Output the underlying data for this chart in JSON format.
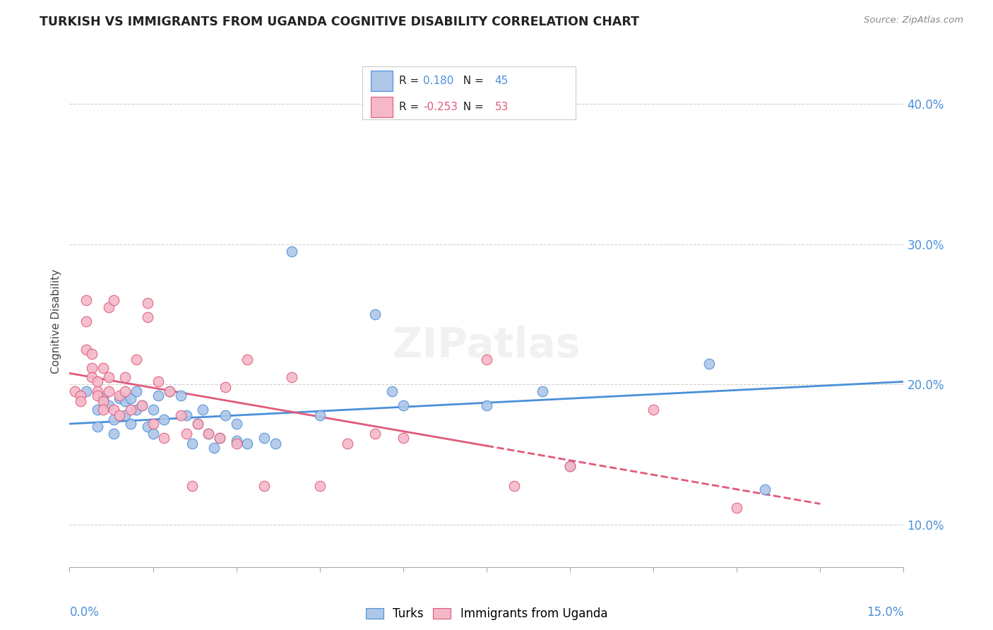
{
  "title": "TURKISH VS IMMIGRANTS FROM UGANDA COGNITIVE DISABILITY CORRELATION CHART",
  "source": "Source: ZipAtlas.com",
  "ylabel": "Cognitive Disability",
  "xmin": 0.0,
  "xmax": 15.0,
  "ymin": 7.0,
  "ymax": 42.0,
  "yticks": [
    10.0,
    20.0,
    30.0,
    40.0
  ],
  "blue_R": 0.18,
  "blue_N": 45,
  "pink_R": -0.253,
  "pink_N": 53,
  "blue_color": "#aec6e8",
  "pink_color": "#f4b8c8",
  "blue_line_color": "#4a90d9",
  "pink_line_color": "#e05a7a",
  "blue_dots": [
    [
      0.3,
      19.5
    ],
    [
      0.5,
      18.2
    ],
    [
      0.5,
      17.0
    ],
    [
      0.6,
      19.0
    ],
    [
      0.7,
      18.5
    ],
    [
      0.8,
      17.5
    ],
    [
      0.8,
      16.5
    ],
    [
      0.9,
      19.0
    ],
    [
      1.0,
      17.8
    ],
    [
      1.0,
      18.8
    ],
    [
      1.1,
      19.0
    ],
    [
      1.1,
      17.2
    ],
    [
      1.2,
      19.5
    ],
    [
      1.2,
      18.2
    ],
    [
      1.3,
      18.5
    ],
    [
      1.4,
      17.0
    ],
    [
      1.5,
      18.2
    ],
    [
      1.6,
      19.2
    ],
    [
      1.7,
      17.5
    ],
    [
      1.8,
      19.5
    ],
    [
      2.0,
      19.2
    ],
    [
      2.1,
      17.8
    ],
    [
      2.2,
      15.8
    ],
    [
      2.3,
      17.2
    ],
    [
      2.4,
      18.2
    ],
    [
      2.5,
      16.5
    ],
    [
      2.7,
      16.2
    ],
    [
      2.8,
      17.8
    ],
    [
      3.0,
      17.2
    ],
    [
      3.2,
      15.8
    ],
    [
      3.5,
      16.2
    ],
    [
      3.7,
      15.8
    ],
    [
      4.0,
      29.5
    ],
    [
      4.5,
      17.8
    ],
    [
      5.5,
      25.0
    ],
    [
      5.8,
      19.5
    ],
    [
      6.0,
      18.5
    ],
    [
      7.5,
      18.5
    ],
    [
      8.5,
      19.5
    ],
    [
      9.0,
      14.2
    ],
    [
      11.5,
      21.5
    ],
    [
      12.5,
      12.5
    ],
    [
      2.6,
      15.5
    ],
    [
      3.0,
      16.0
    ],
    [
      1.5,
      16.5
    ]
  ],
  "pink_dots": [
    [
      0.1,
      19.5
    ],
    [
      0.2,
      19.2
    ],
    [
      0.2,
      18.8
    ],
    [
      0.3,
      26.0
    ],
    [
      0.3,
      24.5
    ],
    [
      0.3,
      22.5
    ],
    [
      0.4,
      22.2
    ],
    [
      0.4,
      21.2
    ],
    [
      0.4,
      20.5
    ],
    [
      0.5,
      20.2
    ],
    [
      0.5,
      19.5
    ],
    [
      0.5,
      19.2
    ],
    [
      0.6,
      18.8
    ],
    [
      0.6,
      18.2
    ],
    [
      0.6,
      21.2
    ],
    [
      0.7,
      19.5
    ],
    [
      0.7,
      20.5
    ],
    [
      0.7,
      25.5
    ],
    [
      0.8,
      26.0
    ],
    [
      0.8,
      18.2
    ],
    [
      0.9,
      19.2
    ],
    [
      0.9,
      17.8
    ],
    [
      1.0,
      20.5
    ],
    [
      1.0,
      19.5
    ],
    [
      1.1,
      18.2
    ],
    [
      1.2,
      21.8
    ],
    [
      1.3,
      18.5
    ],
    [
      1.4,
      25.8
    ],
    [
      1.4,
      24.8
    ],
    [
      1.5,
      17.2
    ],
    [
      1.6,
      20.2
    ],
    [
      1.7,
      16.2
    ],
    [
      1.8,
      19.5
    ],
    [
      2.0,
      17.8
    ],
    [
      2.1,
      16.5
    ],
    [
      2.2,
      12.8
    ],
    [
      2.3,
      17.2
    ],
    [
      2.5,
      16.5
    ],
    [
      2.7,
      16.2
    ],
    [
      2.8,
      19.8
    ],
    [
      3.0,
      15.8
    ],
    [
      3.2,
      21.8
    ],
    [
      3.5,
      12.8
    ],
    [
      4.0,
      20.5
    ],
    [
      4.5,
      12.8
    ],
    [
      5.0,
      15.8
    ],
    [
      5.5,
      16.5
    ],
    [
      6.0,
      16.2
    ],
    [
      7.5,
      21.8
    ],
    [
      8.0,
      12.8
    ],
    [
      9.0,
      14.2
    ],
    [
      10.5,
      18.2
    ],
    [
      12.0,
      11.2
    ]
  ],
  "blue_line": {
    "x0": 0.0,
    "x1": 15.0,
    "y0": 17.2,
    "y1": 20.2
  },
  "pink_line": {
    "x0": 0.0,
    "x1": 13.5,
    "y0": 20.8,
    "y1": 11.5
  },
  "pink_line_solid_end": 7.5
}
